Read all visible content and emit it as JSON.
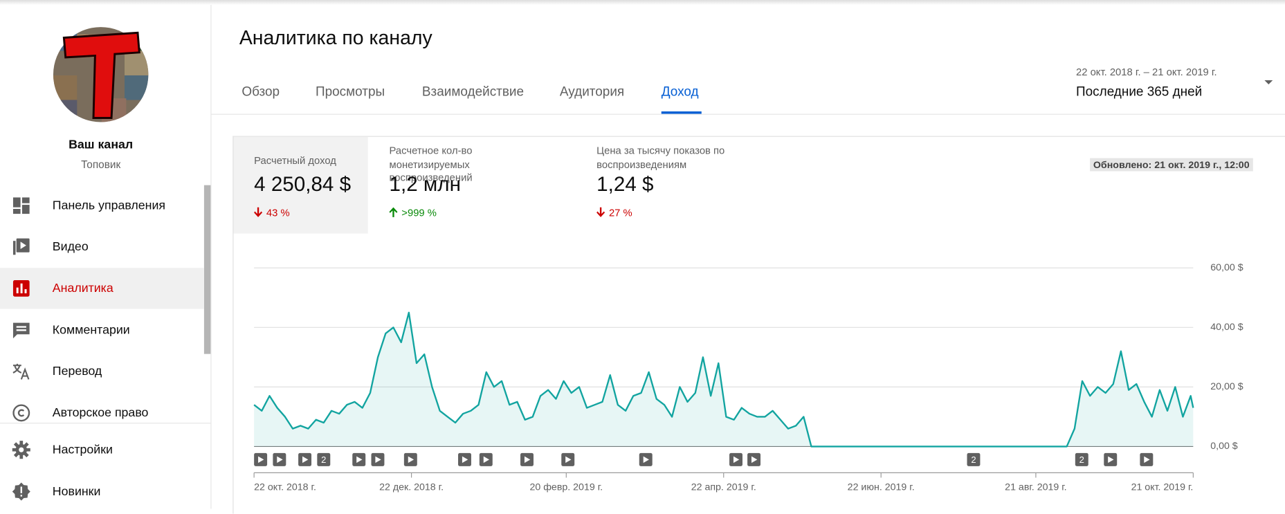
{
  "sidebar": {
    "channel_title": "Ваш канал",
    "channel_name": "Топовик",
    "menu": [
      "Панель управления",
      "Видео",
      "Аналитика",
      "Комментарии",
      "Перевод",
      "Авторское право",
      "Настройки",
      "Новинки"
    ]
  },
  "header": {
    "title": "Аналитика по каналу",
    "tabs": [
      "Обзор",
      "Просмотры",
      "Взаимодействие",
      "Аудитория",
      "Доход"
    ],
    "date_range": "22 окт. 2018 г. – 21 окт. 2019 г.",
    "period": "Последние 365 дней"
  },
  "metrics": [
    {
      "label": "Расчетный доход",
      "value": "4 250,84 $",
      "change": "43 %"
    },
    {
      "label": "Расчетное кол-во монетизируемых воспроизведений",
      "value": "1,2 млн",
      "change": ">999 %"
    },
    {
      "label": "Цена за тысячу показов по воспроизведениям",
      "value": "1,24 $",
      "change": "27 %"
    }
  ],
  "updated": "Обновлено: 21 окт. 2019 г., 12:00",
  "marker_labels": [
    "2",
    "2",
    "2"
  ],
  "chart_data": {
    "type": "area",
    "color": "#12a4a0",
    "x": [
      0,
      3,
      6,
      9,
      12,
      15,
      18,
      21,
      24,
      27,
      30,
      33,
      36,
      39,
      42,
      45,
      48,
      51,
      54,
      57,
      60,
      63,
      66,
      69,
      72,
      75,
      78,
      81,
      84,
      87,
      90,
      93,
      96,
      99,
      102,
      105,
      108,
      111,
      114,
      117,
      120,
      123,
      126,
      129,
      132,
      135,
      138,
      141,
      144,
      147,
      150,
      153,
      156,
      159,
      162,
      165,
      168,
      171,
      174,
      177,
      180,
      183,
      186,
      189,
      192,
      195,
      198,
      201,
      204,
      207,
      210,
      213,
      216,
      219,
      222,
      225,
      228,
      231,
      234,
      237,
      240,
      243,
      246,
      249,
      252,
      255,
      258,
      261,
      264,
      267,
      270,
      273,
      276,
      279,
      282,
      285,
      288,
      291,
      294,
      297,
      300,
      303,
      306,
      309,
      312,
      315,
      318,
      321,
      324,
      327,
      330,
      333,
      336,
      339,
      342,
      345,
      348,
      351,
      354,
      357,
      360,
      363,
      364
    ],
    "values": [
      14,
      12,
      17,
      13,
      10,
      6,
      7,
      6,
      9,
      8,
      12,
      11,
      14,
      15,
      13,
      18,
      30,
      38,
      40,
      35,
      45,
      28,
      31,
      20,
      12,
      10,
      8,
      11,
      12,
      14,
      25,
      20,
      22,
      14,
      15,
      9,
      10,
      17,
      19,
      16,
      22,
      18,
      20,
      13,
      14,
      15,
      24,
      14,
      12,
      17,
      18,
      25,
      16,
      14,
      10,
      20,
      15,
      18,
      30,
      17,
      28,
      10,
      9,
      13,
      11,
      10,
      10,
      12,
      9,
      6,
      7,
      10,
      0,
      0,
      0,
      0,
      0,
      0,
      0,
      0,
      0,
      0,
      0,
      0,
      0,
      0,
      0,
      0,
      0,
      0,
      0,
      0,
      0,
      0,
      0,
      0,
      0,
      0,
      0,
      0,
      0,
      0,
      0,
      0,
      0,
      0,
      6,
      22,
      17,
      20,
      18,
      21,
      32,
      19,
      21,
      15,
      10,
      19,
      12,
      20,
      10,
      17,
      13
    ],
    "xlim": [
      0,
      364
    ],
    "xticks": [
      {
        "value": 0,
        "label": "22 окт. 2018 г."
      },
      {
        "value": 61,
        "label": "22 дек. 2018 г."
      },
      {
        "value": 121,
        "label": "20 февр. 2019 г."
      },
      {
        "value": 182,
        "label": "22 апр. 2019 г."
      },
      {
        "value": 243,
        "label": "22 июн. 2019 г."
      },
      {
        "value": 303,
        "label": "21 авг. 2019 г."
      },
      {
        "value": 364,
        "label": "21 окт. 2019 г."
      }
    ],
    "ylim": [
      0,
      60
    ],
    "yticks": [
      {
        "value": 0,
        "label": "0,00 $"
      },
      {
        "value": 20,
        "label": "20,00 $"
      },
      {
        "value": 40,
        "label": "40,00 $"
      },
      {
        "value": 60,
        "label": "60,00 $"
      }
    ],
    "grid": true
  }
}
